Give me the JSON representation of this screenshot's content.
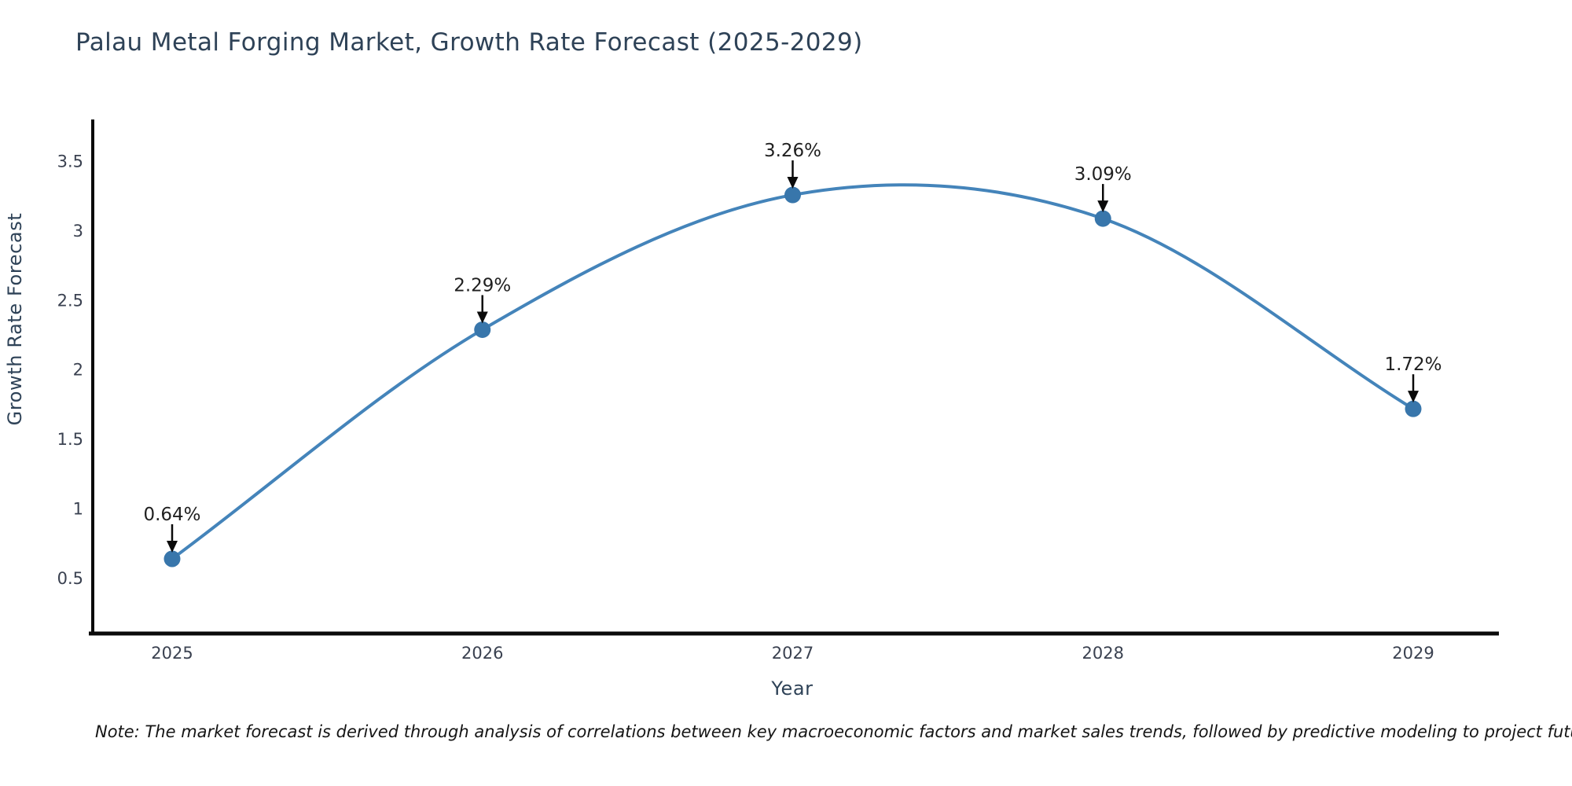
{
  "title": "Palau Metal Forging Market, Growth Rate Forecast (2025-2029)",
  "chart_data": {
    "type": "line",
    "title": "Palau Metal Forging Market, Growth Rate Forecast (2025-2029)",
    "x": [
      2025,
      2026,
      2027,
      2028,
      2029
    ],
    "values": [
      0.64,
      2.29,
      3.26,
      3.09,
      1.72
    ],
    "point_labels": [
      "0.64%",
      "2.29%",
      "3.26%",
      "3.09%",
      "1.72%"
    ],
    "xlabel": "Year",
    "ylabel": "Growth Rate Forecast",
    "yticks": [
      "0.5",
      "1",
      "1.5",
      "2",
      "2.5",
      "3",
      "3.5"
    ],
    "ylim": [
      0.1,
      3.79
    ],
    "xlim": [
      2024.74,
      2029.27
    ],
    "grid": false,
    "legend": "none",
    "curve": "smooth-spline",
    "annotation_style": "value-above-with-down-arrow"
  },
  "note": "Note: The market forecast is derived through analysis of correlations between key macroeconomic factors and market sales trends, followed by predictive modeling to project future sales",
  "colors": {
    "background": "#ffffff",
    "line": "#4484ba",
    "marker": "#3876ab",
    "axis_line": "#0a0a0a",
    "arrow": "#0a0a0a",
    "title_text": "#2e4257",
    "axis_label_text": "#2e4257",
    "tick_text": "#3a4150",
    "annotation_text": "#1f1f1f"
  }
}
